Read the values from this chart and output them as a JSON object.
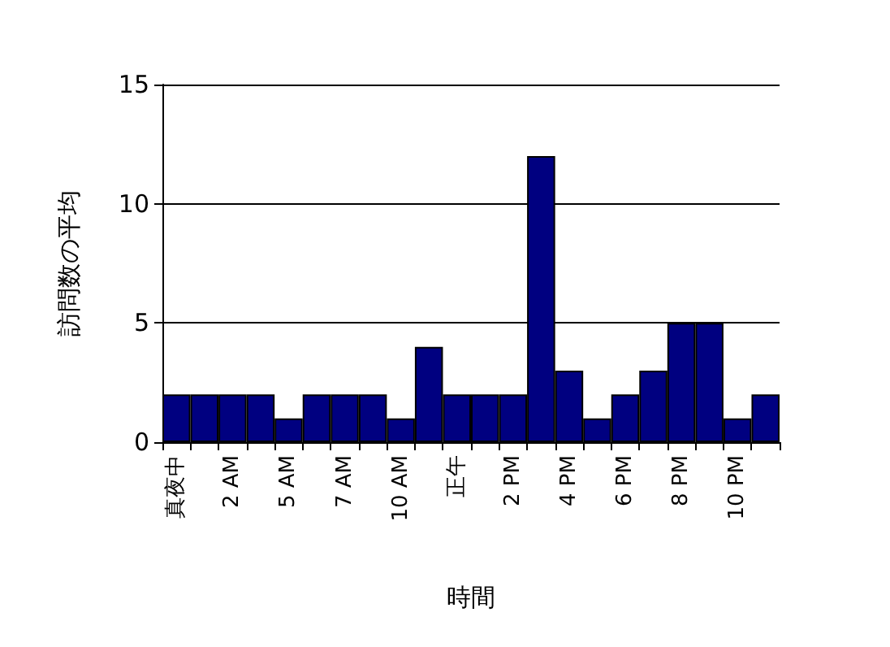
{
  "chart_data": {
    "type": "bar",
    "xlabel": "時間",
    "ylabel": "訪問数の平均",
    "categories": [
      "真夜中",
      null,
      "2 AM",
      null,
      "5 AM",
      null,
      "7 AM",
      null,
      "10 AM",
      null,
      "正午",
      null,
      "2 PM",
      null,
      "4 PM",
      null,
      "6 PM",
      null,
      "8 PM",
      null,
      "10 PM",
      null
    ],
    "values": [
      2,
      2,
      2,
      2,
      1,
      2,
      2,
      2,
      1,
      4,
      2,
      2,
      2,
      12,
      3,
      1,
      2,
      3,
      5,
      5,
      1,
      2
    ],
    "color": "#000080",
    "ylim": [
      0,
      15
    ],
    "yticks": [
      0,
      5,
      10,
      15
    ],
    "grid": "y"
  }
}
